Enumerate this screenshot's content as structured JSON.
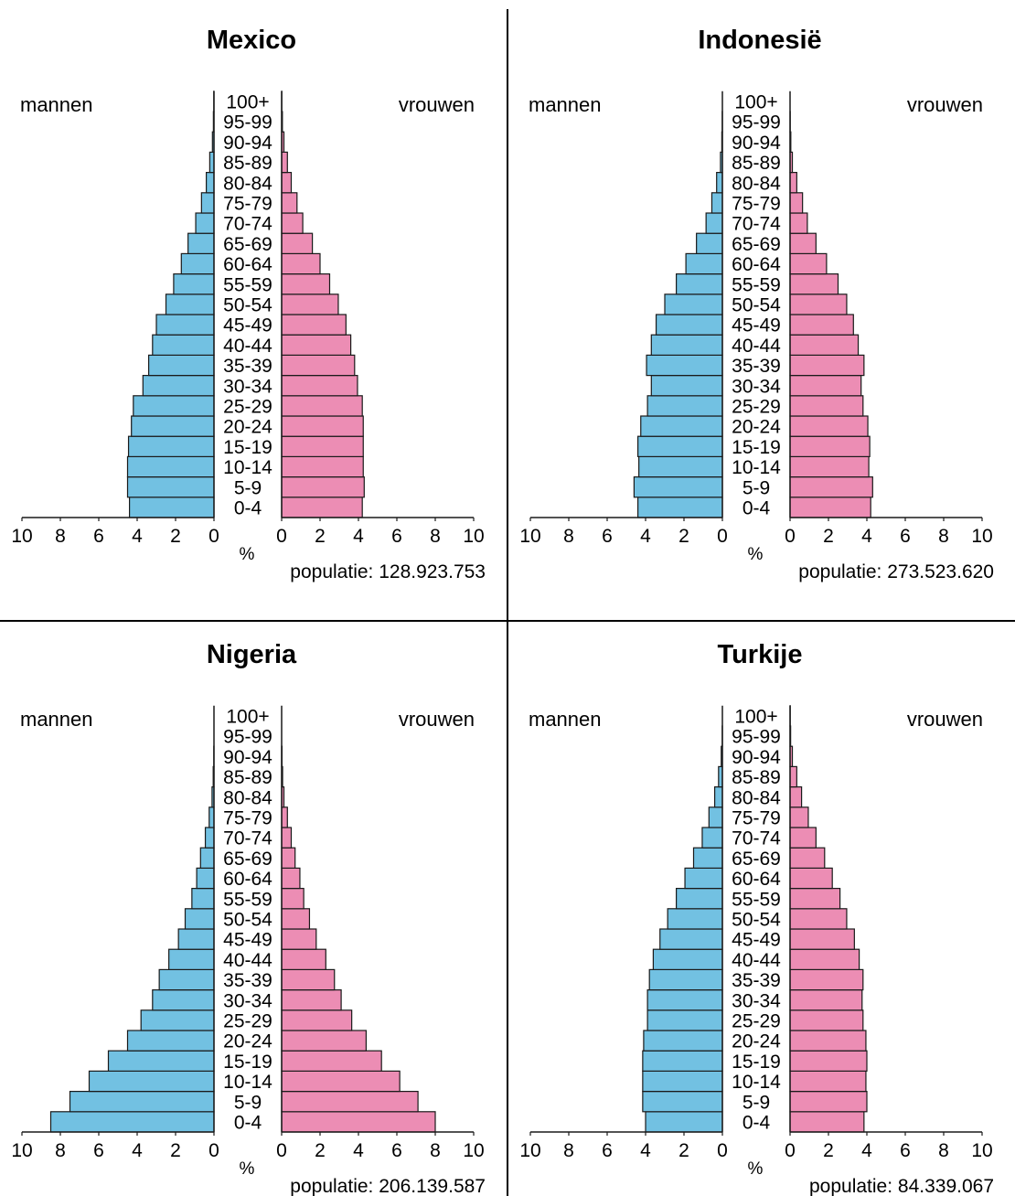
{
  "chart_data": [
    {
      "type": "bar",
      "title": "Mexico",
      "left_label": "mannen",
      "right_label": "vrouwen",
      "axis_unit": "%",
      "population_label": "populatie: 128.923.753",
      "xlim": [
        0,
        10
      ],
      "x_ticks": [
        "10",
        "8",
        "6",
        "4",
        "2",
        "0",
        "0",
        "2",
        "4",
        "6",
        "8",
        "10"
      ],
      "categories": [
        "0-4",
        "5-9",
        "10-14",
        "15-19",
        "20-24",
        "25-29",
        "30-34",
        "35-39",
        "40-44",
        "45-49",
        "50-54",
        "55-59",
        "60-64",
        "65-69",
        "70-74",
        "75-79",
        "80-84",
        "85-89",
        "90-94",
        "95-99",
        "100+"
      ],
      "series": [
        {
          "name": "mannen",
          "values": [
            4.4,
            4.5,
            4.5,
            4.45,
            4.3,
            4.2,
            3.7,
            3.4,
            3.2,
            3.0,
            2.5,
            2.1,
            1.7,
            1.35,
            0.95,
            0.65,
            0.4,
            0.22,
            0.08,
            0.03,
            0.01
          ]
        },
        {
          "name": "vrouwen",
          "values": [
            4.2,
            4.3,
            4.25,
            4.25,
            4.25,
            4.2,
            3.95,
            3.8,
            3.6,
            3.35,
            2.95,
            2.5,
            2.0,
            1.6,
            1.1,
            0.8,
            0.5,
            0.3,
            0.12,
            0.04,
            0.01
          ]
        }
      ]
    },
    {
      "type": "bar",
      "title": "Indonesië",
      "left_label": "mannen",
      "right_label": "vrouwen",
      "axis_unit": "%",
      "population_label": "populatie: 273.523.620",
      "xlim": [
        0,
        10
      ],
      "x_ticks": [
        "10",
        "8",
        "6",
        "4",
        "2",
        "0",
        "0",
        "2",
        "4",
        "6",
        "8",
        "10"
      ],
      "categories": [
        "0-4",
        "5-9",
        "10-14",
        "15-19",
        "20-24",
        "25-29",
        "30-34",
        "35-39",
        "40-44",
        "45-49",
        "50-54",
        "55-59",
        "60-64",
        "65-69",
        "70-74",
        "75-79",
        "80-84",
        "85-89",
        "90-94",
        "95-99",
        "100+"
      ],
      "series": [
        {
          "name": "mannen",
          "values": [
            4.4,
            4.6,
            4.35,
            4.4,
            4.25,
            3.9,
            3.7,
            3.95,
            3.7,
            3.45,
            3.0,
            2.4,
            1.9,
            1.35,
            0.85,
            0.55,
            0.3,
            0.1,
            0.03,
            0.01,
            0.0
          ]
        },
        {
          "name": "vrouwen",
          "values": [
            4.2,
            4.3,
            4.1,
            4.15,
            4.05,
            3.8,
            3.7,
            3.85,
            3.55,
            3.3,
            2.95,
            2.5,
            1.9,
            1.35,
            0.9,
            0.65,
            0.35,
            0.12,
            0.04,
            0.01,
            0.0
          ]
        }
      ]
    },
    {
      "type": "bar",
      "title": "Nigeria",
      "left_label": "mannen",
      "right_label": "vrouwen",
      "axis_unit": "%",
      "population_label": "populatie: 206.139.587",
      "xlim": [
        0,
        10
      ],
      "x_ticks": [
        "10",
        "8",
        "6",
        "4",
        "2",
        "0",
        "0",
        "2",
        "4",
        "6",
        "8",
        "10"
      ],
      "categories": [
        "0-4",
        "5-9",
        "10-14",
        "15-19",
        "20-24",
        "25-29",
        "30-34",
        "35-39",
        "40-44",
        "45-49",
        "50-54",
        "55-59",
        "60-64",
        "65-69",
        "70-74",
        "75-79",
        "80-84",
        "85-89",
        "90-94",
        "95-99",
        "100+"
      ],
      "series": [
        {
          "name": "mannen",
          "values": [
            8.5,
            7.5,
            6.5,
            5.5,
            4.5,
            3.8,
            3.2,
            2.85,
            2.35,
            1.85,
            1.5,
            1.15,
            0.9,
            0.7,
            0.45,
            0.25,
            0.1,
            0.04,
            0.01,
            0.0,
            0.0
          ]
        },
        {
          "name": "vrouwen",
          "values": [
            8.0,
            7.1,
            6.15,
            5.2,
            4.4,
            3.65,
            3.1,
            2.75,
            2.3,
            1.8,
            1.45,
            1.15,
            0.95,
            0.7,
            0.5,
            0.3,
            0.12,
            0.05,
            0.02,
            0.0,
            0.0
          ]
        }
      ]
    },
    {
      "type": "bar",
      "title": "Turkije",
      "left_label": "mannen",
      "right_label": "vrouwen",
      "axis_unit": "%",
      "population_label": "populatie: 84.339.067",
      "xlim": [
        0,
        10
      ],
      "x_ticks": [
        "10",
        "8",
        "6",
        "4",
        "2",
        "0",
        "0",
        "2",
        "4",
        "6",
        "8",
        "10"
      ],
      "categories": [
        "0-4",
        "5-9",
        "10-14",
        "15-19",
        "20-24",
        "25-29",
        "30-34",
        "35-39",
        "40-44",
        "45-49",
        "50-54",
        "55-59",
        "60-64",
        "65-69",
        "70-74",
        "75-79",
        "80-84",
        "85-89",
        "90-94",
        "95-99",
        "100+"
      ],
      "series": [
        {
          "name": "mannen",
          "values": [
            4.0,
            4.15,
            4.15,
            4.15,
            4.1,
            3.9,
            3.9,
            3.8,
            3.6,
            3.25,
            2.85,
            2.4,
            1.95,
            1.5,
            1.05,
            0.7,
            0.4,
            0.2,
            0.06,
            0.01,
            0.0
          ]
        },
        {
          "name": "vrouwen",
          "values": [
            3.85,
            4.0,
            3.95,
            4.0,
            3.95,
            3.8,
            3.75,
            3.8,
            3.6,
            3.35,
            2.95,
            2.6,
            2.2,
            1.8,
            1.35,
            0.95,
            0.6,
            0.35,
            0.12,
            0.03,
            0.01
          ]
        }
      ]
    }
  ],
  "colors": {
    "male_fill": "#72c1e2",
    "female_fill": "#ec8db4",
    "bar_stroke": "#1a1a1a",
    "divider": "#000000"
  }
}
